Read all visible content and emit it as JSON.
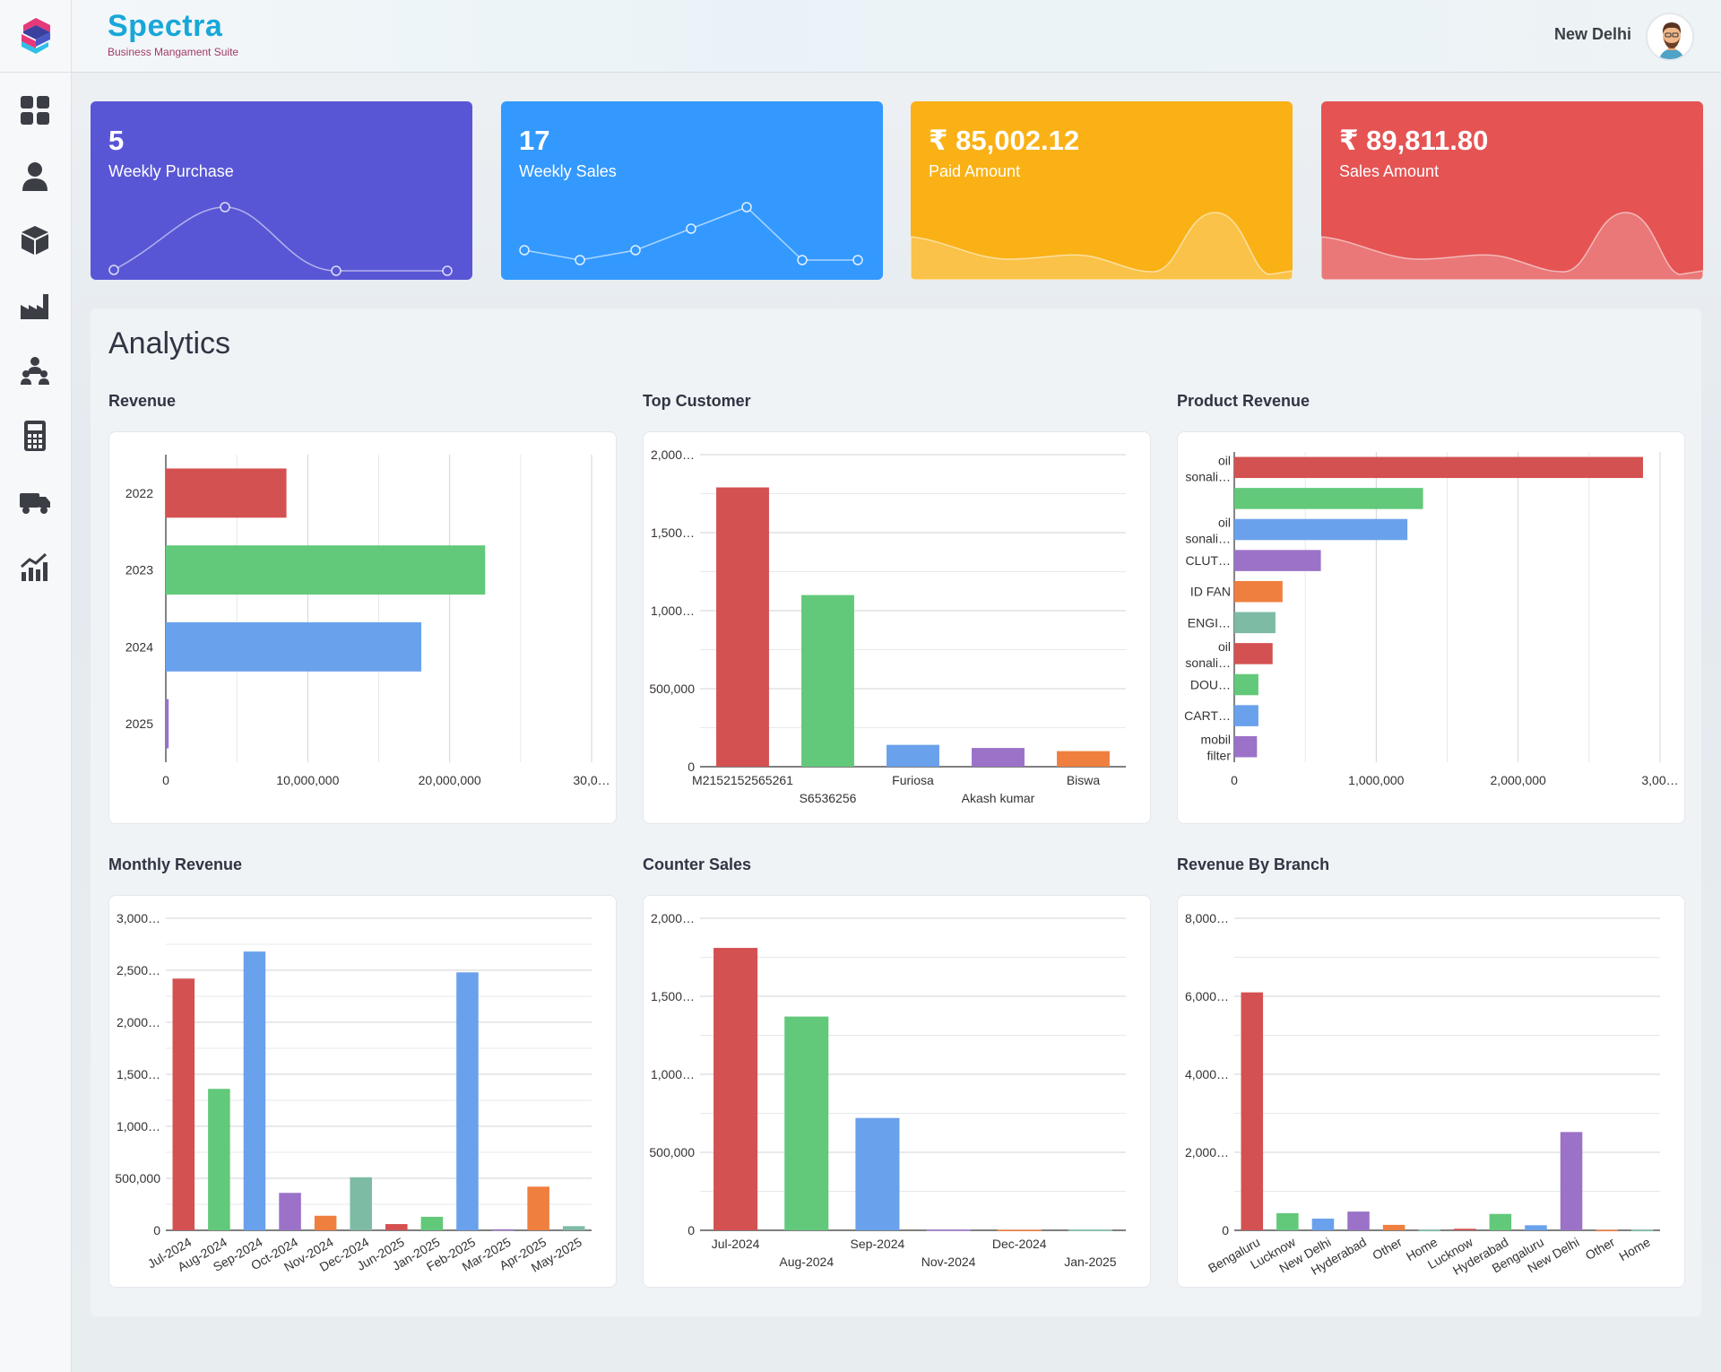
{
  "app": {
    "title": "Spectra",
    "subtitle": "Business Mangament Suite",
    "branch": "New Delhi"
  },
  "sidebar": {
    "items": [
      {
        "icon": "dashboard-grid-icon"
      },
      {
        "icon": "user-icon"
      },
      {
        "icon": "box-icon"
      },
      {
        "icon": "factory-icon"
      },
      {
        "icon": "team-icon"
      },
      {
        "icon": "calculator-icon"
      },
      {
        "icon": "delivery-truck-icon"
      },
      {
        "icon": "growth-chart-icon"
      }
    ]
  },
  "stats": [
    {
      "value": "5",
      "label": "Weekly Purchase",
      "color": "#5956d6",
      "spark": {
        "type": "smooth-line",
        "points": [
          0,
          1,
          0,
          0
        ]
      }
    },
    {
      "value": "17",
      "label": "Weekly Sales",
      "color": "#3399ff",
      "spark": {
        "type": "line",
        "points": [
          2,
          1,
          2,
          4,
          6,
          1,
          1
        ]
      }
    },
    {
      "value": "₹ 85,002.12",
      "label": "Paid Amount",
      "color": "#f9b115",
      "spark": {
        "type": "area"
      }
    },
    {
      "value": "₹ 89,811.80",
      "label": "Sales Amount",
      "color": "#e55353",
      "spark": {
        "type": "area"
      }
    }
  ],
  "analytics": {
    "title": "Analytics"
  },
  "palette": [
    "#d45151",
    "#62c97a",
    "#6aa1ec",
    "#9b72c8",
    "#ef7f3f",
    "#7dbba4"
  ],
  "chart_data": [
    {
      "id": "revenue",
      "title": "Revenue",
      "type": "bar",
      "orientation": "horizontal",
      "categories": [
        "2022",
        "2023",
        "2024",
        "2025"
      ],
      "values": [
        8500000,
        22500000,
        18000000,
        200000
      ],
      "xlim": [
        0,
        30000000
      ],
      "tick_labels": [
        "0",
        "10,000,000",
        "20,000,000",
        "30,0…"
      ],
      "grid": true
    },
    {
      "id": "top-customer",
      "title": "Top Customer",
      "type": "bar",
      "categories": [
        "M2152152565261",
        "S6536256",
        "Furiosa",
        "Akash kumar",
        "Biswa"
      ],
      "values": [
        1790000,
        1100000,
        140000,
        120000,
        100000
      ],
      "ylim": [
        0,
        2000000
      ],
      "tick_labels": [
        "0",
        "500,000",
        "1,000…",
        "1,500…",
        "2,000…"
      ],
      "grid": true
    },
    {
      "id": "product-revenue",
      "title": "Product Revenue",
      "type": "bar",
      "orientation": "horizontal",
      "categories": [
        "oil sonali…",
        "",
        "oil sonali…",
        "CLUT…",
        "ID FAN",
        "ENGI…",
        "oil sonali…",
        "DOU…",
        "CART…",
        "mobil filter"
      ],
      "values": [
        2880000,
        1330000,
        1220000,
        610000,
        340000,
        290000,
        270000,
        170000,
        170000,
        160000
      ],
      "xlim": [
        0,
        3000000
      ],
      "tick_labels": [
        "0",
        "1,000,000",
        "2,000,000",
        "3,00…"
      ],
      "grid": true
    },
    {
      "id": "monthly-revenue",
      "title": "Monthly Revenue",
      "type": "bar",
      "categories": [
        "Jul-2024",
        "Aug-2024",
        "Sep-2024",
        "Oct-2024",
        "Nov-2024",
        "Dec-2024",
        "Jun-2025",
        "Jan-2025",
        "Feb-2025",
        "Mar-2025",
        "Apr-2025",
        "May-2025"
      ],
      "values": [
        2420000,
        1360000,
        2680000,
        360000,
        140000,
        510000,
        60000,
        130000,
        2480000,
        10000,
        420000,
        40000
      ],
      "ylim": [
        0,
        3000000
      ],
      "tick_labels": [
        "0",
        "500,000",
        "1,000…",
        "1,500…",
        "2,000…",
        "2,500…",
        "3,000…"
      ],
      "grid": true
    },
    {
      "id": "counter-sales",
      "title": "Counter Sales",
      "type": "bar",
      "categories": [
        "Jul-2024",
        "Aug-2024",
        "Sep-2024",
        "Nov-2024",
        "Dec-2024",
        "Jan-2025"
      ],
      "values": [
        1810000,
        1370000,
        720000,
        5000,
        3000,
        4000
      ],
      "ylim": [
        0,
        2000000
      ],
      "tick_labels": [
        "0",
        "500,000",
        "1,000…",
        "1,500…",
        "2,000…"
      ],
      "grid": true
    },
    {
      "id": "revenue-by-branch",
      "title": "Revenue By Branch",
      "type": "bar",
      "categories": [
        "Bengaluru",
        "Lucknow",
        "New Delhi",
        "Hyderabad",
        "Other",
        "Home",
        "Lucknow",
        "Hyderabad",
        "Bengaluru",
        "New Delhi",
        "Other",
        "Home"
      ],
      "values": [
        6100000,
        440000,
        300000,
        480000,
        140000,
        10000,
        40000,
        420000,
        130000,
        2520000,
        10000,
        10000
      ],
      "ylim": [
        0,
        8000000
      ],
      "tick_labels": [
        "0",
        "2,000…",
        "4,000…",
        "6,000…",
        "8,000…"
      ],
      "grid": true
    }
  ]
}
